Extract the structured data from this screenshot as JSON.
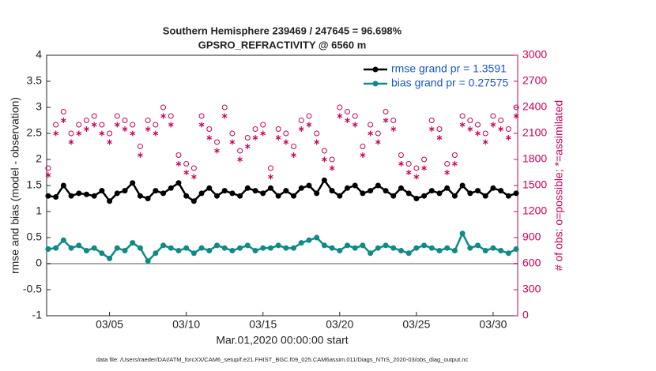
{
  "chart_data": {
    "type": "line",
    "title": "Southern Hemisphere 239469 / 247645 = 96.698%",
    "subtitle": "GPSRO_REFRACTIVITY @ 6560 m",
    "xlabel": "Mar.01,2020 00:00:00 start",
    "ylabel": "rmse and bias (model - observation)",
    "y2label": "# of obs: o=possible; *=assimilated",
    "note": "data file: /Users/raeder/DAI/ATM_forcXX/CAM6_setup/f.e21.FHIST_BGC.f09_025.CAM6assim.011/Diags_NTrS_2020-03/obs_diag_output.nc",
    "legend": "upper right",
    "reference_line": 0,
    "xlim": [
      0.9,
      31.6
    ],
    "xticks": [
      {
        "value": 5,
        "label": "03/05"
      },
      {
        "value": 10,
        "label": "03/10"
      },
      {
        "value": 15,
        "label": "03/15"
      },
      {
        "value": 20,
        "label": "03/20"
      },
      {
        "value": 25,
        "label": "03/25"
      },
      {
        "value": 30,
        "label": "03/30"
      }
    ],
    "ylim": [
      -1,
      4
    ],
    "yticks": [
      -1,
      -0.5,
      0,
      0.5,
      1,
      1.5,
      2,
      2.5,
      3,
      3.5,
      4
    ],
    "y2lim": [
      0,
      3000
    ],
    "y2ticks": [
      0,
      300,
      600,
      900,
      1200,
      1500,
      1800,
      2100,
      2400,
      2700,
      3000
    ],
    "x": [
      1,
      1.5,
      2,
      2.5,
      3,
      3.5,
      4,
      4.5,
      5,
      5.5,
      6,
      6.5,
      7,
      7.5,
      8,
      8.5,
      9,
      9.5,
      10,
      10.5,
      11,
      11.5,
      12,
      12.5,
      13,
      13.5,
      14,
      14.5,
      15,
      15.5,
      16,
      16.5,
      17,
      17.5,
      18,
      18.5,
      19,
      19.5,
      20,
      20.5,
      21,
      21.5,
      22,
      22.5,
      23,
      23.5,
      24,
      24.5,
      25,
      25.5,
      26,
      26.5,
      27,
      27.5,
      28,
      28.5,
      29,
      29.5,
      30,
      30.5,
      31,
      31.5
    ],
    "series": [
      {
        "name": "rmse grand pr = 1.3591",
        "color": "#000000",
        "marker": "line",
        "values": [
          1.3,
          1.28,
          1.5,
          1.3,
          1.35,
          1.33,
          1.3,
          1.4,
          1.2,
          1.35,
          1.4,
          1.55,
          1.3,
          1.25,
          1.4,
          1.35,
          1.45,
          1.55,
          1.3,
          1.2,
          1.35,
          1.45,
          1.3,
          1.4,
          1.35,
          1.3,
          1.45,
          1.4,
          1.35,
          1.45,
          1.3,
          1.4,
          1.3,
          1.45,
          1.5,
          1.35,
          1.6,
          1.4,
          1.3,
          1.45,
          1.5,
          1.35,
          1.4,
          1.5,
          1.4,
          1.3,
          1.45,
          1.35,
          1.25,
          1.3,
          1.4,
          1.35,
          1.45,
          1.3,
          1.5,
          1.35,
          1.4,
          1.3,
          1.45,
          1.4,
          1.3,
          1.35
        ]
      },
      {
        "name": "bias grand pr = 0.27575",
        "color": "#0f8a84",
        "marker": "line",
        "values": [
          0.28,
          0.3,
          0.45,
          0.3,
          0.35,
          0.25,
          0.3,
          0.2,
          0.1,
          0.3,
          0.25,
          0.4,
          0.3,
          0.05,
          0.2,
          0.35,
          0.3,
          0.25,
          0.3,
          0.2,
          0.3,
          0.25,
          0.35,
          0.3,
          0.25,
          0.3,
          0.35,
          0.25,
          0.3,
          0.3,
          0.35,
          0.3,
          0.3,
          0.4,
          0.45,
          0.5,
          0.35,
          0.3,
          0.25,
          0.35,
          0.3,
          0.35,
          0.2,
          0.3,
          0.35,
          0.3,
          0.25,
          0.2,
          0.3,
          0.35,
          0.3,
          0.25,
          0.3,
          0.25,
          0.58,
          0.3,
          0.35,
          0.25,
          0.3,
          0.25,
          0.2,
          0.28
        ]
      },
      {
        "color": "#c8005a",
        "marker": "o",
        "axis": "y2",
        "values": [
          1700,
          2200,
          2350,
          2100,
          2200,
          2250,
          2300,
          2200,
          2100,
          2300,
          2250,
          2200,
          1950,
          2250,
          2200,
          2400,
          2300,
          1850,
          1750,
          1700,
          2300,
          2150,
          2000,
          2400,
          2100,
          1900,
          2050,
          2150,
          2200,
          1700,
          2150,
          2100,
          1950,
          2250,
          2300,
          2100,
          1900,
          1800,
          2400,
          2350,
          2300,
          1950,
          2200,
          2100,
          2350,
          2250,
          1850,
          1750,
          1700,
          1800,
          2250,
          2150,
          1750,
          1850,
          2300,
          2250,
          2200,
          2100,
          2300,
          2250,
          2150,
          2400
        ]
      },
      {
        "color": "#c8005a",
        "marker": "*",
        "axis": "y2",
        "values": [
          1620,
          2100,
          2250,
          2000,
          2100,
          2150,
          2200,
          2100,
          2000,
          2200,
          2150,
          2100,
          1850,
          2150,
          2100,
          2300,
          2200,
          1750,
          1650,
          1600,
          2200,
          2050,
          1900,
          2300,
          2000,
          1800,
          1950,
          2050,
          2100,
          1600,
          2050,
          2000,
          1850,
          2150,
          2200,
          2000,
          1800,
          1700,
          2300,
          2250,
          2200,
          1850,
          2100,
          2000,
          2250,
          2150,
          1750,
          1650,
          1600,
          1700,
          2150,
          2050,
          1650,
          1750,
          2200,
          2150,
          2100,
          2000,
          2200,
          2150,
          2050,
          2300
        ]
      }
    ]
  }
}
